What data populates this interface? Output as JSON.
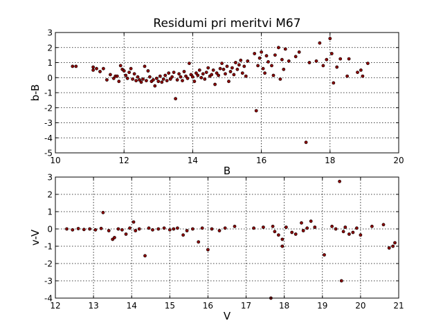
{
  "chart_data": [
    {
      "type": "scatter",
      "title": "Residumi pri meritvi M67",
      "xlabel": "B",
      "ylabel": "b-B",
      "xlim": [
        10,
        20
      ],
      "ylim": [
        -5,
        3
      ],
      "xticks": [
        "10",
        "12",
        "14",
        "16",
        "18",
        "20"
      ],
      "yticks": [
        "-5",
        "-4",
        "-3",
        "-2",
        "-1",
        "0",
        "1",
        "2",
        "3"
      ],
      "grid": true,
      "marker_color": "#8b0000",
      "edge_color": "#000000",
      "series": [
        {
          "points": [
            [
              10.5,
              0.75
            ],
            [
              10.6,
              0.75
            ],
            [
              11.1,
              0.7
            ],
            [
              11.1,
              0.5
            ],
            [
              11.2,
              0.6
            ],
            [
              11.3,
              0.4
            ],
            [
              11.4,
              0.6
            ],
            [
              11.5,
              -0.15
            ],
            [
              11.6,
              0.2
            ],
            [
              11.7,
              -0.05
            ],
            [
              11.75,
              0.1
            ],
            [
              11.8,
              0.1
            ],
            [
              11.85,
              -0.25
            ],
            [
              11.9,
              0.8
            ],
            [
              11.95,
              0.55
            ],
            [
              12.0,
              0.45
            ],
            [
              12.05,
              0.15
            ],
            [
              12.1,
              -0.05
            ],
            [
              12.15,
              0.35
            ],
            [
              12.2,
              0.6
            ],
            [
              12.25,
              -0.1
            ],
            [
              12.3,
              0.25
            ],
            [
              12.35,
              -0.2
            ],
            [
              12.4,
              0.05
            ],
            [
              12.45,
              -0.15
            ],
            [
              12.5,
              -0.3
            ],
            [
              12.55,
              -0.1
            ],
            [
              12.6,
              0.75
            ],
            [
              12.65,
              -0.2
            ],
            [
              12.7,
              0.45
            ],
            [
              12.75,
              0.05
            ],
            [
              12.8,
              -0.25
            ],
            [
              12.85,
              -0.15
            ],
            [
              12.9,
              -0.55
            ],
            [
              12.95,
              -0.05
            ],
            [
              13.0,
              -0.25
            ],
            [
              13.05,
              0.1
            ],
            [
              13.1,
              -0.3
            ],
            [
              13.15,
              -0.1
            ],
            [
              13.2,
              0.15
            ],
            [
              13.25,
              -0.2
            ],
            [
              13.3,
              0.3
            ],
            [
              13.35,
              -0.1
            ],
            [
              13.4,
              0.05
            ],
            [
              13.45,
              0.35
            ],
            [
              13.5,
              -1.4
            ],
            [
              13.55,
              -0.15
            ],
            [
              13.6,
              0.25
            ],
            [
              13.65,
              0.05
            ],
            [
              13.7,
              -0.2
            ],
            [
              13.75,
              0.4
            ],
            [
              13.8,
              0.1
            ],
            [
              13.85,
              -0.05
            ],
            [
              13.9,
              0.95
            ],
            [
              13.95,
              0.2
            ],
            [
              14.0,
              0.05
            ],
            [
              14.05,
              -0.25
            ],
            [
              14.1,
              0.3
            ],
            [
              14.15,
              0.15
            ],
            [
              14.2,
              0.5
            ],
            [
              14.25,
              0.0
            ],
            [
              14.3,
              0.25
            ],
            [
              14.35,
              -0.1
            ],
            [
              14.4,
              0.35
            ],
            [
              14.45,
              0.65
            ],
            [
              14.5,
              0.1
            ],
            [
              14.55,
              0.2
            ],
            [
              14.6,
              0.5
            ],
            [
              14.65,
              -0.45
            ],
            [
              14.7,
              0.3
            ],
            [
              14.75,
              0.15
            ],
            [
              14.8,
              0.6
            ],
            [
              14.85,
              0.95
            ],
            [
              14.9,
              0.55
            ],
            [
              14.95,
              0.25
            ],
            [
              15.0,
              0.75
            ],
            [
              15.05,
              -0.25
            ],
            [
              15.1,
              0.4
            ],
            [
              15.15,
              0.65
            ],
            [
              15.2,
              0.2
            ],
            [
              15.25,
              1.0
            ],
            [
              15.3,
              0.55
            ],
            [
              15.35,
              0.85
            ],
            [
              15.4,
              1.15
            ],
            [
              15.45,
              0.3
            ],
            [
              15.5,
              0.75
            ],
            [
              15.55,
              0.1
            ],
            [
              15.6,
              1.1
            ],
            [
              15.8,
              1.6
            ],
            [
              15.85,
              -2.2
            ],
            [
              15.9,
              0.8
            ],
            [
              15.95,
              1.3
            ],
            [
              16.0,
              1.7
            ],
            [
              16.05,
              0.6
            ],
            [
              16.1,
              0.3
            ],
            [
              16.15,
              1.45
            ],
            [
              16.2,
              1.05
            ],
            [
              16.3,
              0.8
            ],
            [
              16.35,
              0.15
            ],
            [
              16.4,
              1.5
            ],
            [
              16.5,
              2.0
            ],
            [
              16.55,
              -0.1
            ],
            [
              16.6,
              1.2
            ],
            [
              16.65,
              0.55
            ],
            [
              16.7,
              1.9
            ],
            [
              16.8,
              1.1
            ],
            [
              17.0,
              1.4
            ],
            [
              17.1,
              1.7
            ],
            [
              17.3,
              -4.3
            ],
            [
              17.4,
              1.0
            ],
            [
              17.6,
              1.1
            ],
            [
              17.7,
              2.3
            ],
            [
              17.8,
              0.8
            ],
            [
              17.9,
              1.2
            ],
            [
              18.0,
              2.6
            ],
            [
              18.05,
              1.6
            ],
            [
              18.1,
              -0.35
            ],
            [
              18.2,
              0.7
            ],
            [
              18.3,
              1.25
            ],
            [
              18.5,
              0.1
            ],
            [
              18.55,
              1.25
            ],
            [
              18.8,
              0.35
            ],
            [
              18.9,
              0.5
            ],
            [
              18.95,
              0.1
            ],
            [
              19.1,
              0.95
            ]
          ]
        }
      ]
    },
    {
      "type": "scatter",
      "title": "",
      "xlabel": "V",
      "ylabel": "v-V",
      "xlim": [
        12,
        21
      ],
      "ylim": [
        -4,
        3
      ],
      "xticks": [
        "12",
        "13",
        "14",
        "15",
        "16",
        "17",
        "18",
        "19",
        "20",
        "21"
      ],
      "yticks": [
        "-4",
        "-3",
        "-2",
        "-1",
        "0",
        "1",
        "2",
        "3"
      ],
      "grid": true,
      "marker_color": "#8b0000",
      "edge_color": "#000000",
      "series": [
        {
          "points": [
            [
              12.3,
              0.0
            ],
            [
              12.45,
              -0.05
            ],
            [
              12.6,
              0.02
            ],
            [
              12.75,
              -0.03
            ],
            [
              12.9,
              0.0
            ],
            [
              13.05,
              -0.05
            ],
            [
              13.2,
              0.03
            ],
            [
              13.25,
              0.95
            ],
            [
              13.4,
              -0.1
            ],
            [
              13.5,
              -0.6
            ],
            [
              13.55,
              -0.5
            ],
            [
              13.65,
              0.0
            ],
            [
              13.75,
              -0.05
            ],
            [
              13.85,
              -0.3
            ],
            [
              13.95,
              0.05
            ],
            [
              14.05,
              0.4
            ],
            [
              14.1,
              -0.1
            ],
            [
              14.2,
              0.0
            ],
            [
              14.35,
              -1.55
            ],
            [
              14.45,
              0.05
            ],
            [
              14.55,
              -0.05
            ],
            [
              14.7,
              0.0
            ],
            [
              14.85,
              0.05
            ],
            [
              15.0,
              -0.05
            ],
            [
              15.1,
              0.0
            ],
            [
              15.2,
              0.05
            ],
            [
              15.35,
              -0.35
            ],
            [
              15.45,
              -0.1
            ],
            [
              15.6,
              0.0
            ],
            [
              15.75,
              -0.75
            ],
            [
              15.85,
              0.05
            ],
            [
              16.0,
              -1.2
            ],
            [
              16.1,
              0.0
            ],
            [
              16.3,
              -0.1
            ],
            [
              16.45,
              0.05
            ],
            [
              16.7,
              0.15
            ],
            [
              17.2,
              0.05
            ],
            [
              17.45,
              0.1
            ],
            [
              17.7,
              0.15
            ],
            [
              17.75,
              -0.15
            ],
            [
              17.85,
              -0.35
            ],
            [
              17.95,
              -1.0
            ],
            [
              17.95,
              -0.6
            ],
            [
              18.05,
              0.1
            ],
            [
              18.2,
              -0.2
            ],
            [
              18.3,
              -0.3
            ],
            [
              18.45,
              0.35
            ],
            [
              18.5,
              -0.1
            ],
            [
              18.6,
              0.05
            ],
            [
              18.7,
              0.45
            ],
            [
              18.8,
              0.1
            ],
            [
              19.05,
              -1.5
            ],
            [
              19.25,
              0.15
            ],
            [
              19.35,
              0.0
            ],
            [
              19.45,
              2.75
            ],
            [
              19.5,
              -3.0
            ],
            [
              19.55,
              -0.15
            ],
            [
              19.6,
              0.1
            ],
            [
              19.7,
              -0.3
            ],
            [
              19.8,
              -0.2
            ],
            [
              19.9,
              0.05
            ],
            [
              20.0,
              -0.35
            ],
            [
              20.3,
              0.15
            ],
            [
              20.6,
              0.25
            ],
            [
              20.75,
              -1.1
            ],
            [
              20.85,
              -1.0
            ],
            [
              20.9,
              -0.8
            ],
            [
              17.65,
              -4.0
            ]
          ]
        }
      ]
    }
  ]
}
